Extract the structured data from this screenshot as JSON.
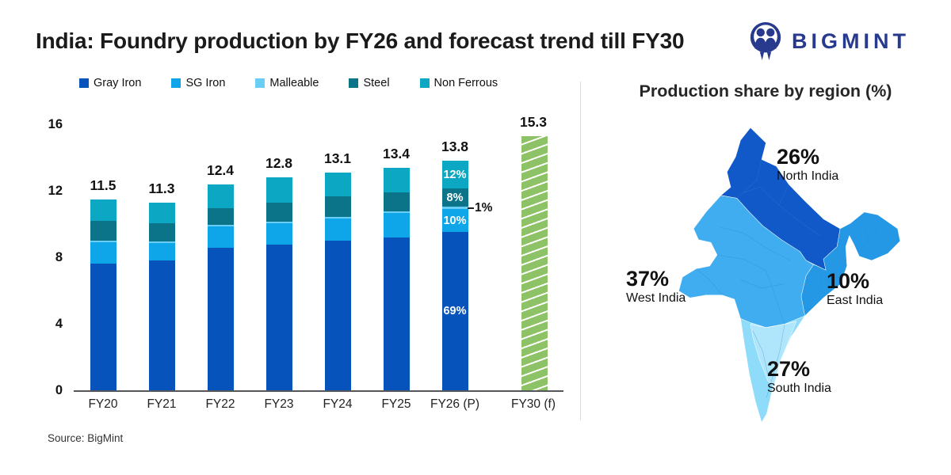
{
  "header": {
    "title": "India: Foundry production by FY26 and forecast trend till FY30",
    "brand": "BIGMINT"
  },
  "source": "Source: BigMint",
  "chart_data": {
    "type": "stacked-bar",
    "categories": [
      "FY20",
      "FY21",
      "FY22",
      "FY23",
      "FY24",
      "FY25",
      "FY26 (P)",
      "FY30 (f)"
    ],
    "totals": [
      11.5,
      11.3,
      12.4,
      12.8,
      13.1,
      13.4,
      13.8,
      15.3
    ],
    "series": [
      {
        "name": "Gray Iron",
        "color": "#0753bc",
        "values": [
          7.6,
          7.8,
          8.55,
          8.75,
          9.0,
          9.2,
          9.52,
          null
        ]
      },
      {
        "name": "SG Iron",
        "color": "#0ea6e9",
        "values": [
          1.3,
          1.05,
          1.3,
          1.3,
          1.35,
          1.45,
          1.38,
          null
        ]
      },
      {
        "name": "Malleable",
        "color": "#69cdf6",
        "values": [
          0.1,
          0.1,
          0.1,
          0.1,
          0.1,
          0.12,
          0.14,
          null
        ]
      },
      {
        "name": "Steel",
        "color": "#0b7489",
        "values": [
          1.2,
          1.12,
          1.0,
          1.12,
          1.2,
          1.12,
          1.1,
          null
        ]
      },
      {
        "name": "Non Ferrous",
        "color": "#0ca7c3",
        "values": [
          1.3,
          1.23,
          1.45,
          1.53,
          1.45,
          1.51,
          1.66,
          null
        ]
      }
    ],
    "forecast_bar": {
      "category": "FY30 (f)",
      "value": 15.3,
      "color": "#8dc366",
      "hatch": "white-diagonal"
    },
    "inside_labels_category": "FY26 (P)",
    "inside_labels": {
      "Gray Iron": "69%",
      "SG Iron": "10%",
      "Steel": "8%",
      "Non Ferrous": "12%"
    },
    "callout": {
      "series": "Malleable",
      "text": "1%"
    },
    "ylim": [
      0,
      16
    ],
    "yticks": [
      0,
      4,
      8,
      12,
      16
    ],
    "grid": false,
    "legend_position": "top"
  },
  "right_panel": {
    "title": "Production share by region (%)",
    "regions": [
      {
        "key": "north",
        "percent": "26%",
        "name": "North India"
      },
      {
        "key": "west",
        "percent": "37%",
        "name": "West India"
      },
      {
        "key": "east",
        "percent": "10%",
        "name": "East India"
      },
      {
        "key": "south",
        "percent": "27%",
        "name": "South India"
      }
    ],
    "map_colors": {
      "north": "#1158c8",
      "west": "#3fadf0",
      "east": "#2598e5",
      "south": "#8edcf9",
      "south_inner": "#b0e6fb",
      "state_line": "#2f86c9"
    }
  }
}
